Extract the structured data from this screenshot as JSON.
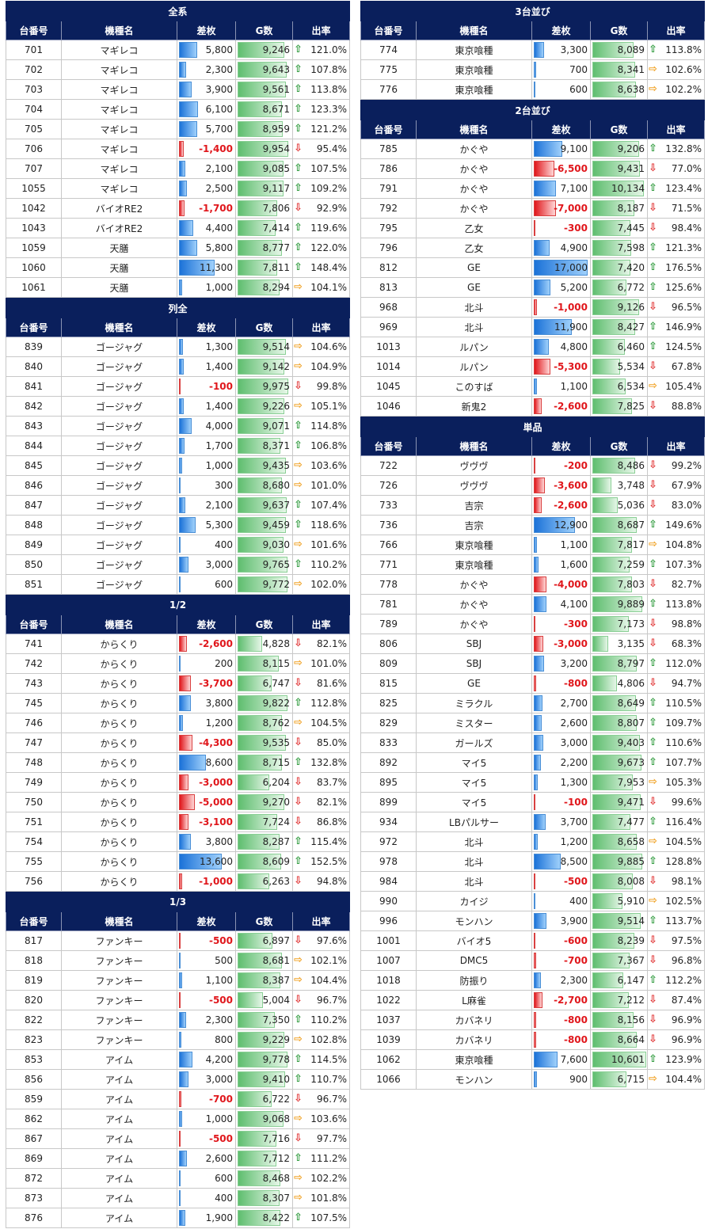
{
  "headers": [
    "台番号",
    "機種名",
    "差枚",
    "G数",
    "出率"
  ],
  "left": [
    {
      "title": "全系",
      "rows": [
        [
          "701",
          "マギレコ",
          "5,800",
          "9,246",
          "121.0%"
        ],
        [
          "702",
          "マギレコ",
          "2,300",
          "9,643",
          "107.8%"
        ],
        [
          "703",
          "マギレコ",
          "3,900",
          "9,561",
          "113.8%"
        ],
        [
          "704",
          "マギレコ",
          "6,100",
          "8,671",
          "123.3%"
        ],
        [
          "705",
          "マギレコ",
          "5,700",
          "8,959",
          "121.2%"
        ],
        [
          "706",
          "マギレコ",
          "-1,400",
          "9,954",
          "95.4%"
        ],
        [
          "707",
          "マギレコ",
          "2,100",
          "9,085",
          "107.5%"
        ],
        [
          "1055",
          "マギレコ",
          "2,500",
          "9,117",
          "109.2%"
        ],
        [
          "1042",
          "バイオRE2",
          "-1,700",
          "7,806",
          "92.9%"
        ],
        [
          "1043",
          "バイオRE2",
          "4,400",
          "7,414",
          "119.6%"
        ],
        [
          "1059",
          "天膳",
          "5,800",
          "8,777",
          "122.0%"
        ],
        [
          "1060",
          "天膳",
          "11,300",
          "7,811",
          "148.4%"
        ],
        [
          "1061",
          "天膳",
          "1,000",
          "8,294",
          "104.1%"
        ]
      ]
    },
    {
      "title": "列全",
      "rows": [
        [
          "839",
          "ゴージャグ",
          "1,300",
          "9,514",
          "104.6%"
        ],
        [
          "840",
          "ゴージャグ",
          "1,400",
          "9,142",
          "104.9%"
        ],
        [
          "841",
          "ゴージャグ",
          "-100",
          "9,975",
          "99.8%"
        ],
        [
          "842",
          "ゴージャグ",
          "1,400",
          "9,226",
          "105.1%"
        ],
        [
          "843",
          "ゴージャグ",
          "4,000",
          "9,071",
          "114.8%"
        ],
        [
          "844",
          "ゴージャグ",
          "1,700",
          "8,371",
          "106.8%"
        ],
        [
          "845",
          "ゴージャグ",
          "1,000",
          "9,435",
          "103.6%"
        ],
        [
          "846",
          "ゴージャグ",
          "300",
          "8,680",
          "101.0%"
        ],
        [
          "847",
          "ゴージャグ",
          "2,100",
          "9,637",
          "107.4%"
        ],
        [
          "848",
          "ゴージャグ",
          "5,300",
          "9,459",
          "118.6%"
        ],
        [
          "849",
          "ゴージャグ",
          "400",
          "9,030",
          "101.6%"
        ],
        [
          "850",
          "ゴージャグ",
          "3,000",
          "9,765",
          "110.2%"
        ],
        [
          "851",
          "ゴージャグ",
          "600",
          "9,772",
          "102.0%"
        ]
      ]
    },
    {
      "title": "1/2",
      "rows": [
        [
          "741",
          "からくり",
          "-2,600",
          "4,828",
          "82.1%"
        ],
        [
          "742",
          "からくり",
          "200",
          "8,115",
          "101.0%"
        ],
        [
          "743",
          "からくり",
          "-3,700",
          "6,747",
          "81.6%"
        ],
        [
          "745",
          "からくり",
          "3,800",
          "9,822",
          "112.8%"
        ],
        [
          "746",
          "からくり",
          "1,200",
          "8,762",
          "104.5%"
        ],
        [
          "747",
          "からくり",
          "-4,300",
          "9,535",
          "85.0%"
        ],
        [
          "748",
          "からくり",
          "8,600",
          "8,715",
          "132.8%"
        ],
        [
          "749",
          "からくり",
          "-3,000",
          "6,204",
          "83.7%"
        ],
        [
          "750",
          "からくり",
          "-5,000",
          "9,270",
          "82.1%"
        ],
        [
          "751",
          "からくり",
          "-3,100",
          "7,724",
          "86.8%"
        ],
        [
          "754",
          "からくり",
          "3,800",
          "8,287",
          "115.4%"
        ],
        [
          "755",
          "からくり",
          "13,600",
          "8,609",
          "152.5%"
        ],
        [
          "756",
          "からくり",
          "-1,000",
          "6,263",
          "94.8%"
        ]
      ]
    },
    {
      "title": "1/3",
      "rows": [
        [
          "817",
          "ファンキー",
          "-500",
          "6,897",
          "97.6%"
        ],
        [
          "818",
          "ファンキー",
          "500",
          "8,681",
          "102.1%"
        ],
        [
          "819",
          "ファンキー",
          "1,100",
          "8,387",
          "104.4%"
        ],
        [
          "820",
          "ファンキー",
          "-500",
          "5,004",
          "96.7%"
        ],
        [
          "822",
          "ファンキー",
          "2,300",
          "7,350",
          "110.2%"
        ],
        [
          "823",
          "ファンキー",
          "800",
          "9,229",
          "102.8%"
        ],
        [
          "853",
          "アイム",
          "4,200",
          "9,778",
          "114.5%"
        ],
        [
          "856",
          "アイム",
          "3,000",
          "9,410",
          "110.7%"
        ],
        [
          "859",
          "アイム",
          "-700",
          "6,722",
          "96.7%"
        ],
        [
          "862",
          "アイム",
          "1,000",
          "9,068",
          "103.6%"
        ],
        [
          "867",
          "アイム",
          "-500",
          "7,716",
          "97.7%"
        ],
        [
          "869",
          "アイム",
          "2,600",
          "7,712",
          "111.2%"
        ],
        [
          "872",
          "アイム",
          "600",
          "8,468",
          "102.2%"
        ],
        [
          "873",
          "アイム",
          "400",
          "8,307",
          "101.8%"
        ],
        [
          "876",
          "アイム",
          "1,900",
          "8,422",
          "107.5%"
        ]
      ]
    }
  ],
  "right": [
    {
      "title": "3台並び",
      "rows": [
        [
          "774",
          "東京喰種",
          "3,300",
          "8,089",
          "113.8%"
        ],
        [
          "775",
          "東京喰種",
          "700",
          "8,341",
          "102.6%"
        ],
        [
          "776",
          "東京喰種",
          "600",
          "8,638",
          "102.2%"
        ]
      ]
    },
    {
      "title": "2台並び",
      "rows": [
        [
          "785",
          "かぐや",
          "9,100",
          "9,206",
          "132.8%"
        ],
        [
          "786",
          "かぐや",
          "-6,500",
          "9,431",
          "77.0%"
        ],
        [
          "791",
          "かぐや",
          "7,100",
          "10,134",
          "123.4%"
        ],
        [
          "792",
          "かぐや",
          "-7,000",
          "8,187",
          "71.5%"
        ],
        [
          "795",
          "乙女",
          "-300",
          "7,445",
          "98.4%"
        ],
        [
          "796",
          "乙女",
          "4,900",
          "7,598",
          "121.3%"
        ],
        [
          "812",
          "GE",
          "17,000",
          "7,420",
          "176.5%"
        ],
        [
          "813",
          "GE",
          "5,200",
          "6,772",
          "125.6%"
        ],
        [
          "968",
          "北斗",
          "-1,000",
          "9,126",
          "96.5%"
        ],
        [
          "969",
          "北斗",
          "11,900",
          "8,427",
          "146.9%"
        ],
        [
          "1013",
          "ルパン",
          "4,800",
          "6,460",
          "124.5%"
        ],
        [
          "1014",
          "ルパン",
          "-5,300",
          "5,534",
          "67.8%"
        ],
        [
          "1045",
          "このすば",
          "1,100",
          "6,534",
          "105.4%"
        ],
        [
          "1046",
          "新鬼2",
          "-2,600",
          "7,825",
          "88.8%"
        ]
      ]
    },
    {
      "title": "単品",
      "rows": [
        [
          "722",
          "ヴヴヴ",
          "-200",
          "8,486",
          "99.2%"
        ],
        [
          "726",
          "ヴヴヴ",
          "-3,600",
          "3,748",
          "67.9%"
        ],
        [
          "733",
          "吉宗",
          "-2,600",
          "5,036",
          "83.0%"
        ],
        [
          "736",
          "吉宗",
          "12,900",
          "8,687",
          "149.6%"
        ],
        [
          "766",
          "東京喰種",
          "1,100",
          "7,817",
          "104.8%"
        ],
        [
          "771",
          "東京喰種",
          "1,600",
          "7,259",
          "107.3%"
        ],
        [
          "778",
          "かぐや",
          "-4,000",
          "7,803",
          "82.7%"
        ],
        [
          "781",
          "かぐや",
          "4,100",
          "9,889",
          "113.8%"
        ],
        [
          "789",
          "かぐや",
          "-300",
          "7,173",
          "98.8%"
        ],
        [
          "806",
          "SBJ",
          "-3,000",
          "3,135",
          "68.3%"
        ],
        [
          "809",
          "SBJ",
          "3,200",
          "8,797",
          "112.0%"
        ],
        [
          "815",
          "GE",
          "-800",
          "4,806",
          "94.7%"
        ],
        [
          "825",
          "ミラクル",
          "2,700",
          "8,649",
          "110.5%"
        ],
        [
          "829",
          "ミスター",
          "2,600",
          "8,807",
          "109.7%"
        ],
        [
          "833",
          "ガールズ",
          "3,000",
          "9,403",
          "110.6%"
        ],
        [
          "892",
          "マイ5",
          "2,200",
          "9,673",
          "107.7%"
        ],
        [
          "895",
          "マイ5",
          "1,300",
          "7,953",
          "105.3%"
        ],
        [
          "899",
          "マイ5",
          "-100",
          "9,471",
          "99.6%"
        ],
        [
          "934",
          "LBパルサー",
          "3,700",
          "7,477",
          "116.4%"
        ],
        [
          "972",
          "北斗",
          "1,200",
          "8,658",
          "104.5%"
        ],
        [
          "978",
          "北斗",
          "8,500",
          "9,885",
          "128.8%"
        ],
        [
          "984",
          "北斗",
          "-500",
          "8,008",
          "98.1%"
        ],
        [
          "990",
          "カイジ",
          "400",
          "5,910",
          "102.5%"
        ],
        [
          "996",
          "モンハン",
          "3,900",
          "9,514",
          "113.7%"
        ],
        [
          "1001",
          "バイオ5",
          "-600",
          "8,239",
          "97.5%"
        ],
        [
          "1007",
          "DMC5",
          "-700",
          "7,367",
          "96.8%"
        ],
        [
          "1018",
          "防振り",
          "2,300",
          "6,147",
          "112.2%"
        ],
        [
          "1022",
          "L麻雀",
          "-2,700",
          "7,212",
          "87.4%"
        ],
        [
          "1037",
          "カバネリ",
          "-800",
          "8,156",
          "96.9%"
        ],
        [
          "1039",
          "カバネリ",
          "-800",
          "8,664",
          "96.9%"
        ],
        [
          "1062",
          "東京喰種",
          "7,600",
          "10,601",
          "123.9%"
        ],
        [
          "1066",
          "モンハン",
          "900",
          "6,715",
          "104.4%"
        ]
      ]
    }
  ]
}
